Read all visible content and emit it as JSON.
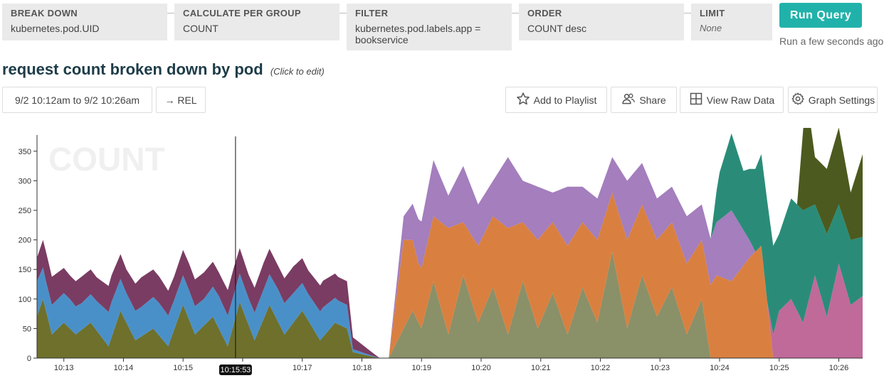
{
  "query": {
    "breakdown": {
      "title": "BREAK DOWN",
      "value": "kubernetes.pod.UID"
    },
    "calculate": {
      "title": "CALCULATE PER GROUP",
      "value": "COUNT"
    },
    "filter": {
      "title": "FILTER",
      "value": "kubernetes.pod.labels.app = bookservice"
    },
    "order": {
      "title": "ORDER",
      "value": "COUNT desc"
    },
    "limit": {
      "title": "LIMIT",
      "value": "None"
    }
  },
  "run": {
    "label": "Run Query",
    "status": "Run a few seconds ago"
  },
  "title": {
    "text": "request count broken down by pod",
    "hint": "(Click to edit)"
  },
  "toolbar": {
    "time_range": "9/2 10:12am to 9/2 10:26am",
    "rel": "→ REL",
    "playlist": "Add to Playlist",
    "share": "Share",
    "raw": "View Raw Data",
    "settings": "Graph Settings"
  },
  "chart_data": {
    "type": "area",
    "stacked": true,
    "watermark": "COUNT",
    "cursor_label": "10:15:53",
    "cursor_minute": 15.88,
    "x_tick_minutes": [
      13,
      14,
      15,
      16,
      17,
      18,
      19,
      20,
      21,
      22,
      23,
      24,
      25,
      26
    ],
    "x_tick_labels": [
      "10:13",
      "10:14",
      "10:15",
      "",
      "10:17",
      "10:18",
      "10:19",
      "10:20",
      "10:21",
      "10:22",
      "10:23",
      "10:24",
      "10:25",
      "10:26"
    ],
    "y_ticks": [
      0,
      50,
      100,
      150,
      200,
      250,
      300,
      350
    ],
    "ylim": [
      0,
      375
    ],
    "x_range_minutes": [
      12.55,
      26.4
    ],
    "series": [
      {
        "name": "",
        "color": "#6e702c",
        "start": 12.55,
        "end": 18.3,
        "points": [
          [
            12.55,
            70
          ],
          [
            12.65,
            100
          ],
          [
            12.8,
            40
          ],
          [
            13.0,
            60
          ],
          [
            13.2,
            40
          ],
          [
            13.45,
            60
          ],
          [
            13.75,
            20
          ],
          [
            13.95,
            80
          ],
          [
            14.2,
            30
          ],
          [
            14.5,
            50
          ],
          [
            14.75,
            20
          ],
          [
            15.0,
            90
          ],
          [
            15.2,
            40
          ],
          [
            15.5,
            70
          ],
          [
            15.75,
            20
          ],
          [
            15.95,
            95
          ],
          [
            16.2,
            30
          ],
          [
            16.45,
            90
          ],
          [
            16.7,
            40
          ],
          [
            17.0,
            80
          ],
          [
            17.3,
            30
          ],
          [
            17.55,
            60
          ],
          [
            17.75,
            50
          ],
          [
            17.85,
            10
          ],
          [
            18.2,
            2
          ],
          [
            18.3,
            0
          ]
        ]
      },
      {
        "name": "",
        "color": "#4a90c8",
        "start": 12.55,
        "end": 18.3,
        "points": [
          [
            12.55,
            60
          ],
          [
            12.7,
            50
          ],
          [
            12.9,
            50
          ],
          [
            13.1,
            50
          ],
          [
            13.3,
            45
          ],
          [
            13.55,
            50
          ],
          [
            13.8,
            60
          ],
          [
            14.05,
            50
          ],
          [
            14.3,
            50
          ],
          [
            14.6,
            55
          ],
          [
            14.85,
            50
          ],
          [
            15.1,
            50
          ],
          [
            15.35,
            45
          ],
          [
            15.6,
            55
          ],
          [
            15.85,
            50
          ],
          [
            16.1,
            45
          ],
          [
            16.35,
            50
          ],
          [
            16.6,
            55
          ],
          [
            16.85,
            50
          ],
          [
            17.1,
            45
          ],
          [
            17.35,
            50
          ],
          [
            17.6,
            40
          ],
          [
            17.75,
            40
          ],
          [
            17.85,
            5
          ],
          [
            18.3,
            0
          ]
        ]
      },
      {
        "name": "",
        "color": "#7a3c63",
        "start": 12.55,
        "end": 18.3,
        "points": [
          [
            12.55,
            40
          ],
          [
            12.7,
            50
          ],
          [
            12.9,
            45
          ],
          [
            13.1,
            40
          ],
          [
            13.3,
            45
          ],
          [
            13.55,
            40
          ],
          [
            13.8,
            45
          ],
          [
            14.05,
            40
          ],
          [
            14.3,
            50
          ],
          [
            14.6,
            45
          ],
          [
            14.85,
            40
          ],
          [
            15.1,
            45
          ],
          [
            15.35,
            45
          ],
          [
            15.6,
            40
          ],
          [
            15.85,
            45
          ],
          [
            16.1,
            40
          ],
          [
            16.35,
            45
          ],
          [
            16.6,
            40
          ],
          [
            16.85,
            45
          ],
          [
            17.1,
            40
          ],
          [
            17.35,
            45
          ],
          [
            17.6,
            40
          ],
          [
            17.75,
            40
          ],
          [
            17.85,
            20
          ],
          [
            18.3,
            0
          ]
        ]
      },
      {
        "name": "",
        "color": "#8a9068",
        "start": 18.45,
        "end": 23.85,
        "points": [
          [
            18.45,
            0
          ],
          [
            18.7,
            50
          ],
          [
            18.85,
            80
          ],
          [
            19.0,
            50
          ],
          [
            19.2,
            130
          ],
          [
            19.45,
            40
          ],
          [
            19.7,
            140
          ],
          [
            19.95,
            60
          ],
          [
            20.2,
            120
          ],
          [
            20.45,
            40
          ],
          [
            20.7,
            130
          ],
          [
            20.95,
            50
          ],
          [
            21.2,
            110
          ],
          [
            21.45,
            40
          ],
          [
            21.7,
            120
          ],
          [
            21.95,
            60
          ],
          [
            22.2,
            180
          ],
          [
            22.45,
            50
          ],
          [
            22.7,
            140
          ],
          [
            22.95,
            70
          ],
          [
            23.2,
            120
          ],
          [
            23.45,
            40
          ],
          [
            23.7,
            100
          ],
          [
            23.85,
            0
          ]
        ]
      },
      {
        "name": "",
        "color": "#d98040",
        "start": 18.45,
        "end": 24.9,
        "points": [
          [
            18.45,
            0
          ],
          [
            18.7,
            150
          ],
          [
            18.95,
            100
          ],
          [
            19.2,
            110
          ],
          [
            19.45,
            180
          ],
          [
            19.7,
            90
          ],
          [
            19.95,
            130
          ],
          [
            20.2,
            120
          ],
          [
            20.45,
            180
          ],
          [
            20.7,
            100
          ],
          [
            20.95,
            150
          ],
          [
            21.2,
            120
          ],
          [
            21.45,
            150
          ],
          [
            21.7,
            110
          ],
          [
            21.95,
            140
          ],
          [
            22.2,
            100
          ],
          [
            22.45,
            150
          ],
          [
            22.7,
            120
          ],
          [
            22.95,
            130
          ],
          [
            23.2,
            110
          ],
          [
            23.45,
            120
          ],
          [
            23.7,
            100
          ],
          [
            23.95,
            140
          ],
          [
            24.2,
            130
          ],
          [
            24.5,
            170
          ],
          [
            24.7,
            190
          ],
          [
            24.9,
            0
          ]
        ]
      },
      {
        "name": "",
        "color": "#a47ebd",
        "start": 18.45,
        "end": 24.6,
        "points": [
          [
            18.45,
            0
          ],
          [
            18.7,
            40
          ],
          [
            18.95,
            75
          ],
          [
            19.2,
            95
          ],
          [
            19.45,
            55
          ],
          [
            19.7,
            95
          ],
          [
            19.95,
            70
          ],
          [
            20.2,
            60
          ],
          [
            20.45,
            120
          ],
          [
            20.7,
            70
          ],
          [
            20.95,
            90
          ],
          [
            21.2,
            50
          ],
          [
            21.45,
            100
          ],
          [
            21.7,
            60
          ],
          [
            21.95,
            70
          ],
          [
            22.2,
            60
          ],
          [
            22.45,
            100
          ],
          [
            22.7,
            70
          ],
          [
            22.95,
            70
          ],
          [
            23.2,
            60
          ],
          [
            23.45,
            80
          ],
          [
            23.7,
            60
          ],
          [
            23.95,
            90
          ],
          [
            24.2,
            120
          ],
          [
            24.4,
            60
          ],
          [
            24.6,
            0
          ]
        ]
      },
      {
        "name": "",
        "color": "#c06a9a",
        "start": 24.8,
        "end": 26.4,
        "points": [
          [
            24.8,
            0
          ],
          [
            25.0,
            80
          ],
          [
            25.2,
            100
          ],
          [
            25.4,
            60
          ],
          [
            25.6,
            140
          ],
          [
            25.8,
            70
          ],
          [
            26.0,
            160
          ],
          [
            26.2,
            90
          ],
          [
            26.4,
            105
          ]
        ]
      },
      {
        "name": "",
        "color": "#2a8c78",
        "start": 23.85,
        "end": 26.4,
        "points": [
          [
            23.85,
            0
          ],
          [
            24.0,
            80
          ],
          [
            24.2,
            130
          ],
          [
            24.4,
            100
          ],
          [
            24.6,
            140
          ],
          [
            24.8,
            170
          ],
          [
            25.0,
            130
          ],
          [
            25.2,
            170
          ],
          [
            25.4,
            190
          ],
          [
            25.6,
            120
          ],
          [
            25.8,
            140
          ],
          [
            26.0,
            100
          ],
          [
            26.2,
            110
          ],
          [
            26.4,
            100
          ]
        ]
      },
      {
        "name": "",
        "color": "#4c5a1f",
        "start": 25.3,
        "end": 26.4,
        "points": [
          [
            25.3,
            0
          ],
          [
            25.45,
            200
          ],
          [
            25.6,
            80
          ],
          [
            25.8,
            110
          ],
          [
            26.0,
            130
          ],
          [
            26.2,
            80
          ],
          [
            26.4,
            140
          ]
        ]
      }
    ]
  }
}
